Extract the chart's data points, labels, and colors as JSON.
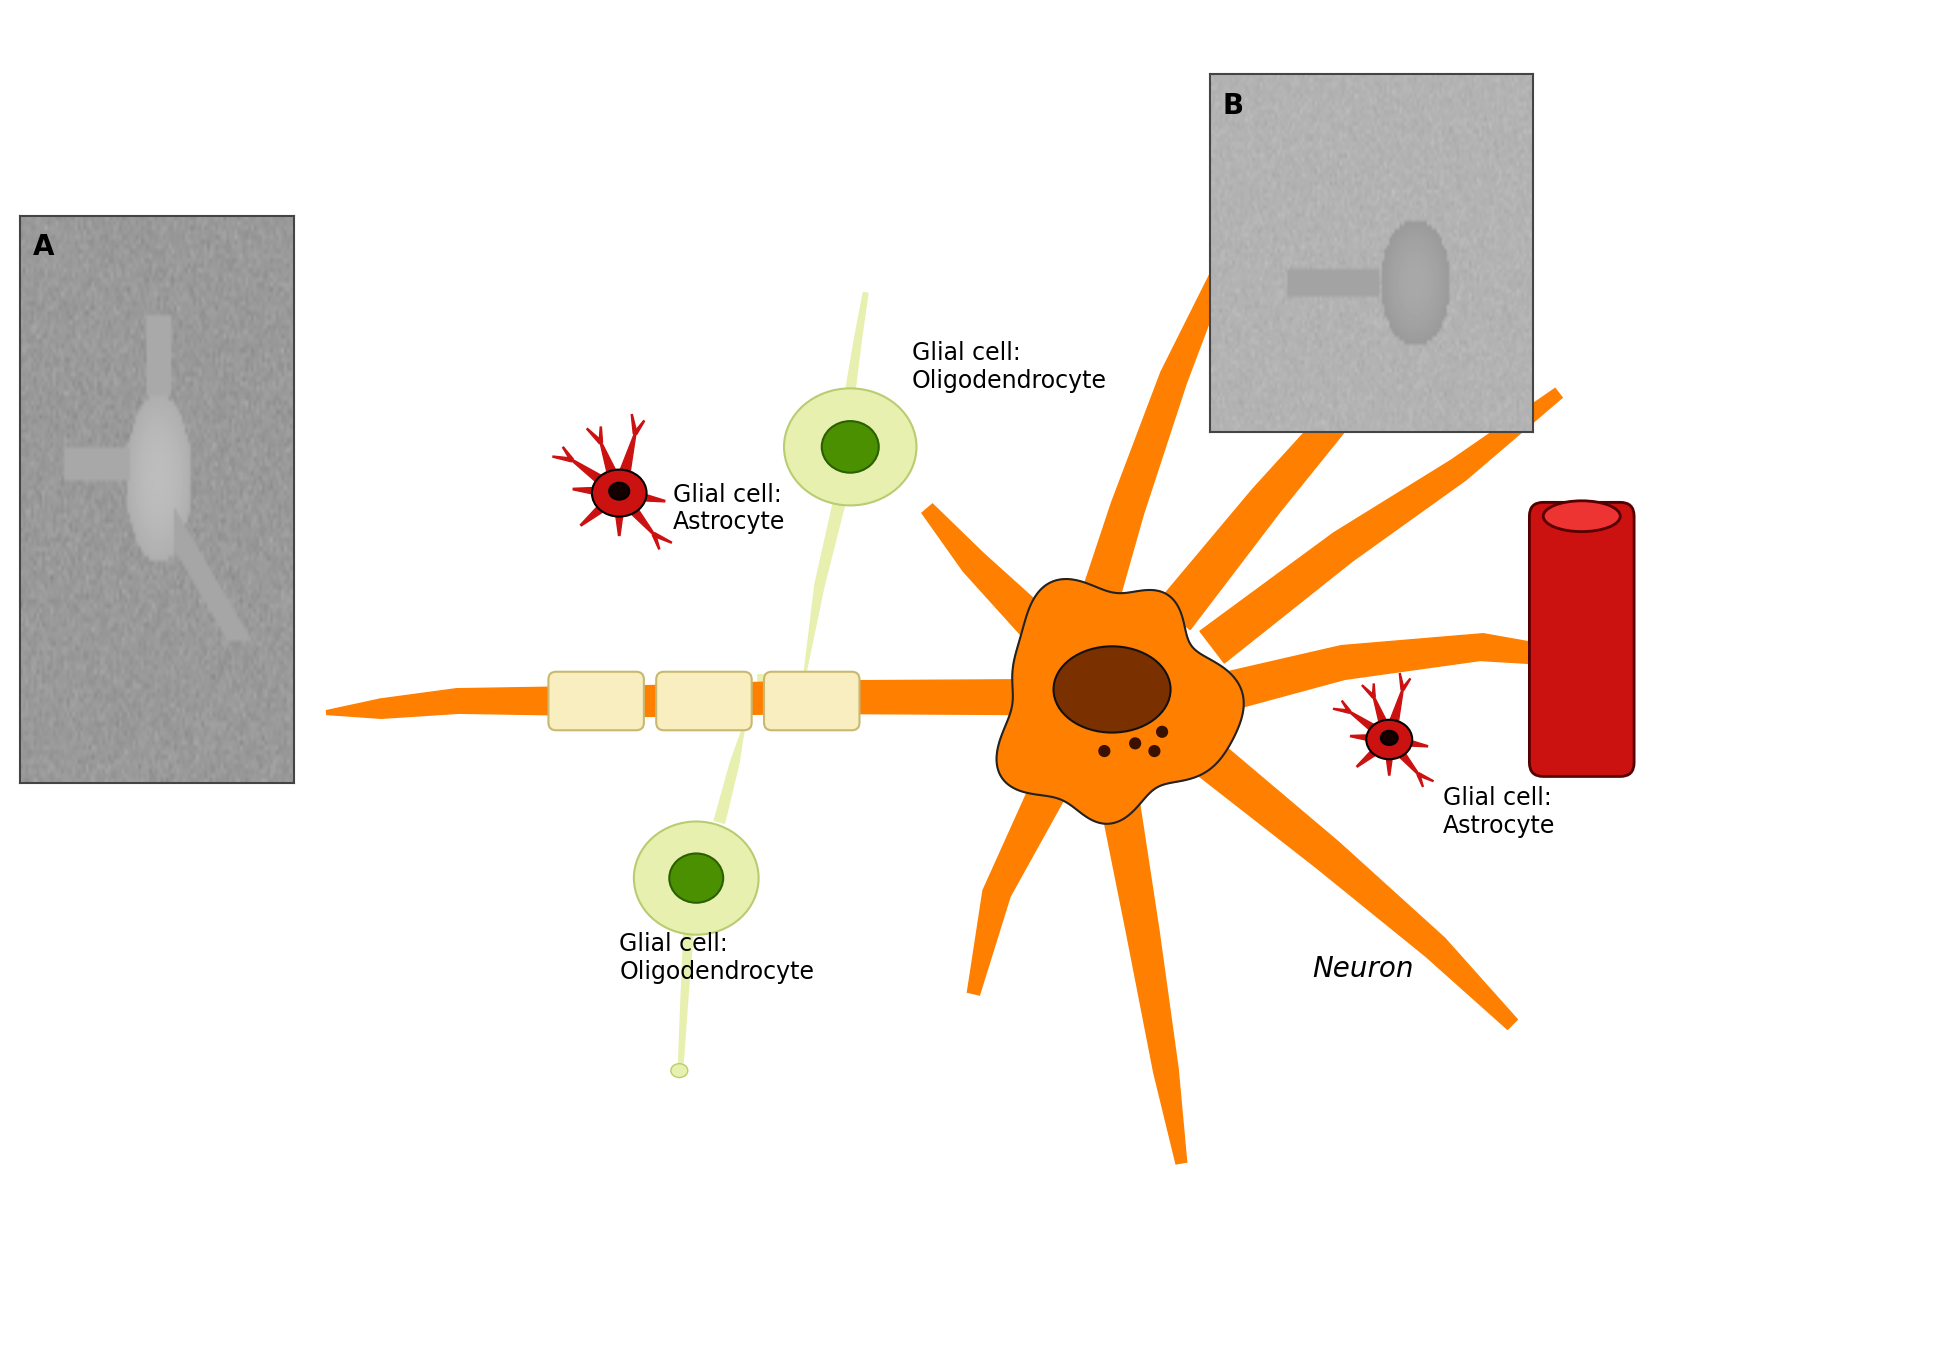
{
  "bg_color": "#ffffff",
  "neuron_color": "#FF8000",
  "neuron_outline": "#CC4400",
  "neuron_nucleus_color": "#7B3000",
  "astrocyte_color": "#CC1111",
  "oligo_body_color": "#E8F0B0",
  "oligo_border_color": "#B8CC70",
  "oligo_nucleus_color": "#4A9000",
  "oligo_nucleus_border": "#2A6000",
  "myelin_color": "#F8EEC0",
  "myelin_border": "#C8B870",
  "blood_vessel_color": "#CC1111",
  "blood_vessel_border": "#550000",
  "text_color": "#000000",
  "label_fontsize": 17,
  "photo_bg_A": "#7A7A7A",
  "photo_bg_B": "#9A9A9A",
  "neuron_label": "Neuron",
  "astrocyte_label1": "Glial cell:\nAstrocyte",
  "astrocyte_label2": "Glial cell:\nAstrocyte",
  "oligo_label1": "Glial cell:\nOligodendrocyte",
  "oligo_label2": "Glial cell:\nOligodendrocyte",
  "inset_A": "A",
  "inset_B": "B"
}
